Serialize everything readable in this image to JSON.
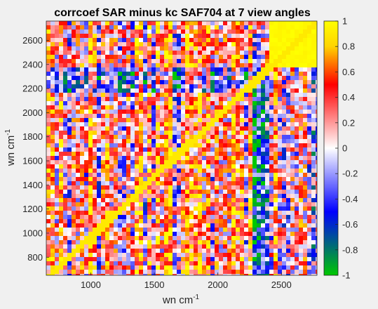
{
  "chart_data": {
    "type": "heatmap",
    "title": "corrcoef SAR minus kc SAF704 at 7 view angles",
    "xlabel": "wn cm",
    "xlabel_sup": "-1",
    "ylabel": "wn cm",
    "ylabel_sup": "-1",
    "xlim": [
      650,
      2780
    ],
    "ylim": [
      650,
      2760
    ],
    "xticks": [
      1000,
      1500,
      2000,
      2500
    ],
    "yticks": [
      800,
      1000,
      1200,
      1400,
      1600,
      1800,
      2000,
      2200,
      2400,
      2600
    ],
    "clim": [
      -1,
      1
    ],
    "colorbar_ticks": [
      1,
      0.8,
      0.6,
      0.4,
      0.2,
      0,
      -0.2,
      -0.4,
      -0.6,
      -0.8,
      -1
    ],
    "colorbar_tick_labels": [
      "1",
      "0.8",
      "0.6",
      "0.4",
      "0.2",
      "0",
      "-0.2",
      "-0.4",
      "-0.6",
      "-0.8",
      "-1"
    ],
    "colormap": [
      "#00c800",
      "#0000ff",
      "#ffffff",
      "#ff0000",
      "#ffd400",
      "#ffff00"
    ],
    "regions": [
      {
        "x": [
          650,
          2780
        ],
        "y": [
          2380,
          2760
        ],
        "mean_corr": 0.3,
        "note_value": "mixed red/blue band"
      },
      {
        "x": [
          2390,
          2780
        ],
        "y": [
          2380,
          2760
        ],
        "mean_corr": 1.0
      },
      {
        "x": [
          650,
          2380
        ],
        "y": [
          650,
          2380
        ],
        "mean_corr": 0.3
      },
      {
        "x": [
          2390,
          2780
        ],
        "y": [
          650,
          2380
        ],
        "mean_corr": 0.1
      },
      {
        "x": [
          2240,
          2390
        ],
        "y": [
          650,
          2380
        ],
        "mean_corr": -0.3
      },
      {
        "x": [
          650,
          2380
        ],
        "y": [
          2200,
          2380
        ],
        "mean_corr": -0.2
      }
    ]
  }
}
